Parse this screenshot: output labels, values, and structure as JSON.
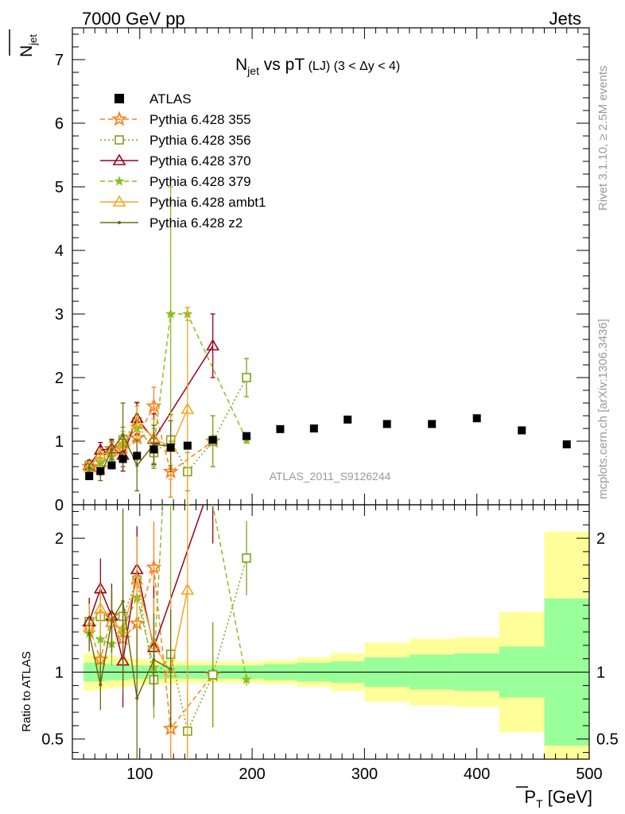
{
  "header": {
    "left": "7000 GeV pp",
    "right": "Jets"
  },
  "side_texts": {
    "rivet": "Rivet 3.1.10, ≥ 2.5M events",
    "mcplots": "mcplots.cern.ch [arXiv:1306.3436]"
  },
  "colors": {
    "ATLAS": "#000000",
    "355": "#ff7f1e",
    "356": "#7fa21e",
    "370": "#990020",
    "379": "#88c020",
    "ambt1": "#f5a623",
    "z2": "#6b6b10",
    "band_inner": "#99ff99",
    "band_outer": "#ffff99"
  },
  "chart_data": {
    "type": "scatter",
    "title_main": "N",
    "title_sub": "jet",
    "title_rest": " vs pT",
    "title_small": " (LJ) (3 < Δy < 4)",
    "ylabel_main": "N",
    "ylabel_sub": "jet",
    "xlabel_main": "P",
    "xlabel_sub": "T",
    "xlabel_rest": " [GeV]",
    "ratio_ylabel": "Ratio to ATLAS",
    "watermark": "ATLAS_2011_S9126244",
    "xlim": [
      40,
      500
    ],
    "ylim_top": [
      0,
      7.5
    ],
    "ylim_ratio": [
      0.35,
      2.25
    ],
    "x_ticks": [
      100,
      200,
      300,
      400,
      500
    ],
    "x_tick_labels": [
      "100",
      "200",
      "300",
      "400",
      "500"
    ],
    "y_ticks_top": [
      1,
      2,
      3,
      4,
      5,
      6,
      7
    ],
    "y_tick_labels_top": [
      "1",
      "2",
      "3",
      "4",
      "5",
      "6",
      "7"
    ],
    "y_zero_label": "0",
    "y_ticks_ratio": [
      0.5,
      1,
      2
    ],
    "y_tick_labels_ratio": [
      "0.5",
      "1",
      "2"
    ],
    "legend_position": "top-left",
    "atlas": {
      "name": "ATLAS",
      "x": [
        55,
        65,
        75,
        85,
        97.5,
        112.5,
        127.5,
        142.5,
        165,
        195,
        225,
        255,
        285,
        320,
        360,
        400,
        440,
        480
      ],
      "xlo": [
        50,
        60,
        70,
        80,
        90,
        105,
        120,
        135,
        150,
        180,
        210,
        240,
        270,
        300,
        340,
        380,
        420,
        460
      ],
      "xhi": [
        60,
        70,
        80,
        90,
        105,
        120,
        135,
        150,
        180,
        210,
        240,
        270,
        300,
        340,
        380,
        420,
        460,
        500
      ],
      "y": [
        0.45,
        0.53,
        0.62,
        0.72,
        0.77,
        0.87,
        0.9,
        0.93,
        1.02,
        1.08,
        1.19,
        1.2,
        1.34,
        1.27,
        1.27,
        1.36,
        1.17,
        0.95
      ],
      "band_inner": [
        0.07,
        0.07,
        0.06,
        0.06,
        0.05,
        0.05,
        0.05,
        0.05,
        0.05,
        0.05,
        0.06,
        0.07,
        0.08,
        0.11,
        0.13,
        0.14,
        0.19,
        0.55
      ],
      "band_outer": [
        0.14,
        0.13,
        0.12,
        0.11,
        0.1,
        0.09,
        0.09,
        0.08,
        0.08,
        0.08,
        0.09,
        0.11,
        0.14,
        0.22,
        0.25,
        0.26,
        0.45,
        1.05
      ]
    },
    "series": [
      {
        "name": "Pythia 6.428 355",
        "key": "355",
        "marker": "star",
        "dash": "6,4",
        "x": [
          55,
          65,
          75,
          85,
          97.5,
          112.5,
          127.5,
          165
        ],
        "y": [
          0.6,
          0.58,
          0.88,
          0.9,
          1.05,
          1.55,
          0.52,
          1.0
        ],
        "err": [
          0.06,
          0.08,
          0.1,
          0.15,
          0.25,
          0.3,
          0.4,
          0.4
        ]
      },
      {
        "name": "Pythia 6.428 356",
        "key": "356",
        "marker": "square_open",
        "dash": "2,3",
        "x": [
          55,
          65,
          75,
          85,
          97.5,
          112.5,
          127.5,
          142.5,
          165,
          195
        ],
        "y": [
          0.62,
          0.75,
          0.85,
          1.02,
          1.3,
          0.82,
          1.02,
          0.52,
          1.0,
          2.0
        ],
        "err": [
          0.08,
          0.1,
          0.15,
          0.2,
          0.3,
          0.25,
          0.4,
          0.3,
          0.4,
          0.3
        ]
      },
      {
        "name": "Pythia 6.428 370",
        "key": "370",
        "marker": "triangle_open",
        "dash": "",
        "x": [
          55,
          65,
          75,
          85,
          97.5,
          112.5,
          165
        ],
        "y": [
          0.62,
          0.86,
          0.88,
          0.78,
          1.36,
          1.03,
          2.5
        ],
        "err": [
          0.08,
          0.12,
          0.15,
          0.25,
          0.25,
          0.4,
          0.5
        ]
      },
      {
        "name": "Pythia 6.428 379",
        "key": "379",
        "marker": "star_small",
        "dash": "6,4",
        "x": [
          55,
          65,
          75,
          85,
          97.5,
          112.5,
          127.5,
          142.5,
          195
        ],
        "y": [
          0.58,
          0.66,
          0.75,
          0.95,
          1.2,
          0.9,
          3.0,
          3.0,
          1.02
        ],
        "err": [
          0.06,
          0.08,
          0.1,
          0.15,
          0.2,
          0.3,
          2.0,
          0.1,
          0.05
        ]
      },
      {
        "name": "Pythia 6.428 ambt1",
        "key": "ambt1",
        "marker": "triangle_open",
        "dash": "",
        "x": [
          55,
          65,
          75,
          85,
          97.5,
          112.5,
          127.5,
          142.5
        ],
        "y": [
          0.6,
          0.78,
          0.85,
          0.95,
          1.3,
          1.05,
          0.9,
          1.5
        ],
        "err": [
          0.08,
          0.1,
          0.12,
          0.2,
          0.25,
          0.3,
          0.5,
          1.6
        ]
      },
      {
        "name": "Pythia 6.428 z2",
        "key": "z2",
        "marker": "dot",
        "dash": "",
        "x": [
          55,
          65,
          75,
          85,
          97.5,
          112.5,
          127.5
        ],
        "y": [
          0.58,
          0.48,
          0.86,
          1.1,
          0.62,
          0.95,
          0.92
        ],
        "err": [
          0.06,
          0.1,
          0.15,
          0.5,
          0.4,
          0.3,
          0.4
        ]
      }
    ]
  }
}
